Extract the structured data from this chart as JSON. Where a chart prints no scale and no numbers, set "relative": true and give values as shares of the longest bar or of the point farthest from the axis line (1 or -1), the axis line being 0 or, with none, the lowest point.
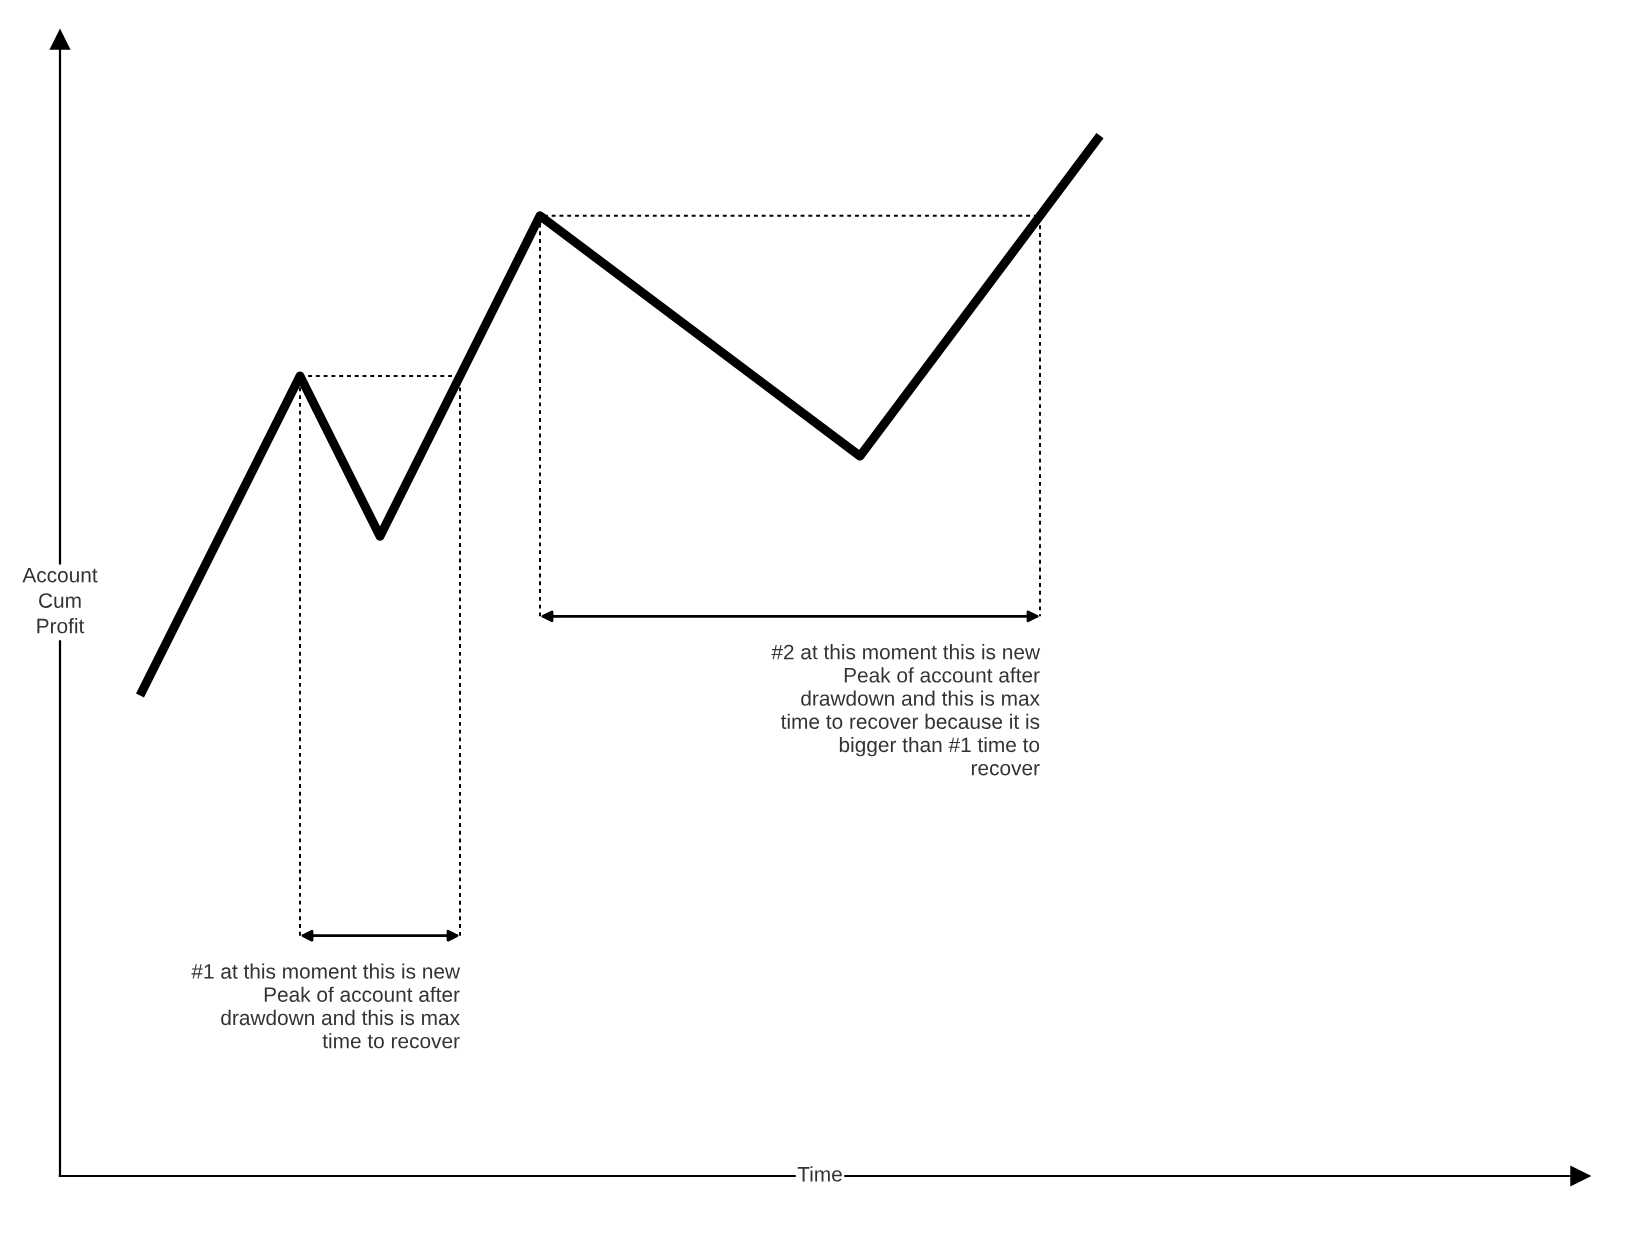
{
  "chart_data": {
    "type": "line",
    "relative": true,
    "xlabel": "Time",
    "ylabel": "Account Cum Profit",
    "categories": [
      null,
      null,
      null,
      null,
      null,
      null,
      null,
      null,
      null,
      null,
      null,
      null,
      null
    ],
    "series": [
      {
        "color": "#000000",
        "values": [
          0.462,
          null,
          0.769,
          0.615,
          null,
          0.923,
          null,
          null,
          null,
          0.692,
          null,
          null,
          1.0
        ]
      }
    ],
    "marker": "none",
    "line_style": "solid",
    "annotations": [
      "#1 at this moment this is new\nPeak of account after\ndrawdown and this is max\ntime to recover",
      "#2 at this moment this is new\nPeak of account after\ndrawdown and this is max\ntime to recover because it is\nbigger than #1 time to\nrecover"
    ]
  }
}
